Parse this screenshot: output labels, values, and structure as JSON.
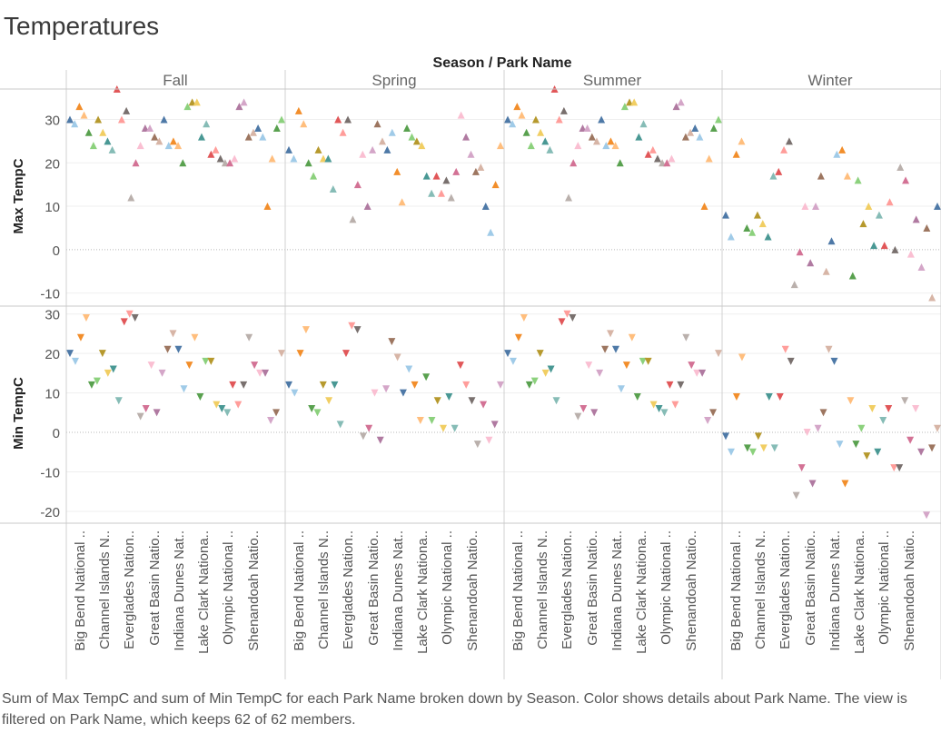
{
  "title": "Temperatures",
  "column_header": "Season / Park Name",
  "caption": "Sum of Max TempC and sum of Min TempC for each Park Name broken down by Season.  Color shows details about Park Name. The view is filtered on Park Name, which keeps 62 of 62 members.",
  "chart_data": {
    "type": "scatter",
    "title": "Temperatures",
    "columns_field": "Season / Park Name",
    "seasons": [
      "Fall",
      "Spring",
      "Summer",
      "Winter"
    ],
    "category_labels": [
      "Big Bend National ..",
      "Channel Islands N..",
      "Everglades Nation..",
      "Great Basin Natio..",
      "Indiana Dunes Nat..",
      "Lake Clark Nationa..",
      "Olympic National ..",
      "Shenandoah Natio.."
    ],
    "panels": [
      {
        "measure": "Max TempC",
        "ylabel": "Max TempC",
        "ylim": [
          -13,
          37
        ],
        "yticks": [
          -10,
          0,
          10,
          20,
          30
        ],
        "marker": "triangle-up",
        "series": {
          "Fall": [
            30,
            29,
            33,
            31,
            27,
            24,
            30,
            27,
            25,
            23,
            37,
            30,
            32,
            12,
            20,
            24,
            28,
            28,
            26,
            25,
            30,
            24,
            25,
            24,
            20,
            33,
            34,
            34,
            26,
            29,
            22,
            23,
            21,
            20,
            20,
            21,
            33,
            34,
            26,
            27,
            28,
            26,
            10,
            21,
            28,
            30
          ],
          "Spring": [
            23,
            21,
            32,
            29,
            20,
            17,
            23,
            21,
            21,
            14,
            30,
            27,
            30,
            7,
            15,
            22,
            10,
            23,
            29,
            25,
            23,
            27,
            18,
            11,
            28,
            26,
            25,
            24,
            17,
            13,
            17,
            13,
            16,
            12,
            18,
            31,
            26,
            22,
            18,
            19,
            10,
            4,
            15,
            24
          ],
          "Summer": [
            30,
            29,
            33,
            31,
            27,
            24,
            30,
            27,
            25,
            23,
            37,
            30,
            32,
            12,
            20,
            24,
            28,
            28,
            26,
            25,
            30,
            24,
            25,
            24,
            20,
            33,
            34,
            34,
            26,
            29,
            22,
            23,
            21,
            20,
            20,
            21,
            33,
            34,
            26,
            27,
            28,
            26,
            10,
            21,
            28,
            30
          ],
          "Winter": [
            8,
            3,
            22,
            25,
            5,
            4,
            8,
            6,
            3,
            17,
            18,
            23,
            25,
            -8,
            -0.5,
            10,
            -3,
            10,
            17,
            -5,
            2,
            22,
            23,
            17,
            -6,
            16,
            6,
            10,
            1,
            8,
            1,
            11,
            0,
            19,
            16,
            -1,
            7,
            -4,
            5,
            -11,
            10
          ]
        }
      },
      {
        "measure": "Min TempC",
        "ylabel": "Min TempC",
        "ylim": [
          -23,
          32
        ],
        "yticks": [
          -20,
          -10,
          0,
          10,
          20,
          30
        ],
        "marker": "triangle-down",
        "series": {
          "Fall": [
            20,
            18,
            24,
            29,
            12,
            13,
            20,
            15,
            16,
            8,
            28,
            30,
            29,
            4,
            6,
            17,
            5,
            15,
            21,
            25,
            21,
            11,
            17,
            24,
            9,
            18,
            18,
            7,
            6,
            5,
            12,
            7,
            12,
            24,
            17,
            15,
            15,
            3,
            5,
            20
          ],
          "Spring": [
            12,
            10,
            20,
            26,
            6,
            5,
            12,
            8,
            12,
            2,
            20,
            27,
            26,
            -1,
            1,
            10,
            -2,
            11,
            23,
            19,
            10,
            16,
            12,
            3,
            14,
            3,
            8,
            1,
            9,
            1,
            17,
            12,
            8,
            -3,
            7,
            -2,
            2,
            12
          ],
          "Summer": [
            20,
            18,
            24,
            29,
            12,
            13,
            20,
            15,
            16,
            8,
            28,
            30,
            29,
            4,
            6,
            17,
            5,
            15,
            21,
            25,
            21,
            11,
            17,
            24,
            9,
            18,
            18,
            7,
            6,
            5,
            12,
            7,
            12,
            24,
            17,
            15,
            15,
            3,
            5,
            20
          ],
          "Winter": [
            -1,
            -5,
            9,
            19,
            -4,
            -5,
            -1,
            -4,
            9,
            -4,
            9,
            21,
            18,
            -16,
            -9,
            0,
            -13,
            1,
            5,
            21,
            18,
            -3,
            -13,
            8,
            -3,
            1,
            -6,
            6,
            -5,
            3,
            6,
            -9,
            -9,
            8,
            -2,
            6,
            -5,
            -21,
            -4,
            1
          ]
        }
      }
    ],
    "park_colors": [
      "#4e79a7",
      "#a0cbe8",
      "#f28e2b",
      "#ffbe7d",
      "#59a14f",
      "#8cd17d",
      "#b6992d",
      "#f1ce63",
      "#499894",
      "#86bcb6",
      "#e15759",
      "#ff9d9a",
      "#79706e",
      "#bab0ac",
      "#d37295",
      "#fabfd2",
      "#b07aa1",
      "#d4a6c8",
      "#9d7660",
      "#d7b5a6"
    ],
    "grid": true,
    "legend": "none"
  }
}
